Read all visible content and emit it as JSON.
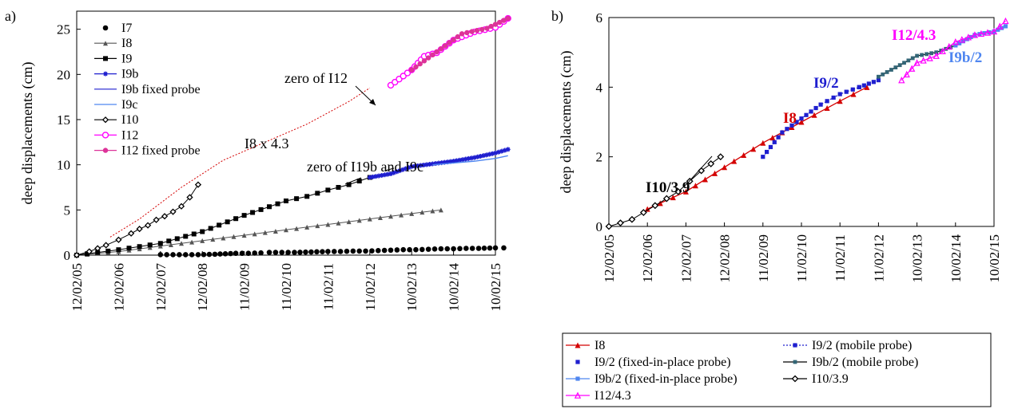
{
  "colors": {
    "red": "#d40000",
    "blue_dark": "#1f1fcf",
    "blue_light": "#4f86f0",
    "magenta": "#ff00ff",
    "pink": "#dd3399",
    "black": "#000000",
    "gray": "#555555",
    "teal": "#336677"
  },
  "chart_data": [
    {
      "panel_label": "a)",
      "type": "line",
      "ylabel": "deep displacements (cm)",
      "xlabel": "",
      "ylim": [
        0,
        27
      ],
      "yticks": [
        "0",
        "5",
        "10",
        "15",
        "20",
        "25"
      ],
      "xticks": [
        "12/02/05",
        "12/02/06",
        "12/02/07",
        "12/02/08",
        "11/02/09",
        "11/02/10",
        "11/02/11",
        "11/02/12",
        "10/02/13",
        "10/02/14",
        "10/02/15"
      ],
      "legend_position": "top-left",
      "annotations": [
        "zero of I12",
        "I8 x 4.3",
        "zero of I19b and I9c"
      ],
      "series": [
        {
          "name": "I7",
          "x": [
            2.0,
            2.3,
            2.6,
            2.9,
            3.3,
            3.8,
            4.1,
            4.4,
            4.6,
            4.9,
            5.2,
            5.6,
            6.0,
            6.3,
            6.6,
            6.9,
            7.2,
            7.5,
            7.8,
            8.1,
            8.4,
            8.7,
            9.0,
            9.3,
            9.6,
            10.0,
            10.2
          ],
          "y": [
            0.05,
            0.05,
            0.05,
            0.05,
            0.1,
            0.2,
            0.2,
            0.25,
            0.3,
            0.3,
            0.3,
            0.35,
            0.4,
            0.4,
            0.45,
            0.45,
            0.5,
            0.55,
            0.6,
            0.6,
            0.65,
            0.7,
            0.7,
            0.75,
            0.75,
            0.8,
            0.8
          ]
        },
        {
          "name": "I8",
          "x": [
            0,
            0.5,
            1.0,
            1.5,
            2.0,
            2.5,
            3.0,
            3.5,
            4.0,
            4.5,
            5.0,
            5.5,
            6.0,
            6.5,
            7.0,
            7.5,
            8.0,
            8.5,
            8.7
          ],
          "y": [
            0,
            0.2,
            0.4,
            0.7,
            1.0,
            1.3,
            1.6,
            1.9,
            2.2,
            2.5,
            2.8,
            3.1,
            3.4,
            3.7,
            4.0,
            4.3,
            4.6,
            4.9,
            5.0
          ]
        },
        {
          "name": "I9",
          "x": [
            0,
            1.0,
            2.0,
            3.0,
            4.0,
            5.0,
            5.5,
            6.0,
            6.5,
            7.0
          ],
          "y": [
            0,
            0.6,
            1.3,
            2.6,
            4.4,
            6.0,
            6.5,
            7.2,
            7.8,
            8.6
          ]
        },
        {
          "name": "I9b",
          "x": [
            7.0,
            7.5,
            8.0,
            8.5,
            9.0,
            9.5,
            10.0,
            10.3
          ],
          "y": [
            8.6,
            9.0,
            9.8,
            10.1,
            10.4,
            10.8,
            11.3,
            11.7
          ]
        },
        {
          "name": "I9b fixed probe",
          "x": [
            7.5,
            8.0
          ],
          "y": [
            9.0,
            9.8
          ]
        },
        {
          "name": "I9c",
          "x": [
            8.5,
            9.0,
            9.5,
            10.0,
            10.3
          ],
          "y": [
            10.0,
            10.2,
            10.4,
            10.7,
            11.0
          ]
        },
        {
          "name": "I10",
          "x": [
            0,
            0.3,
            0.7,
            1.0,
            1.3,
            1.5,
            1.7,
            1.9,
            2.1,
            2.3,
            2.5,
            2.7,
            2.9
          ],
          "y": [
            0,
            0.4,
            1.1,
            1.7,
            2.4,
            2.9,
            3.3,
            3.9,
            4.3,
            4.8,
            5.4,
            6.4,
            7.8
          ]
        },
        {
          "name": "I12",
          "x": [
            7.5,
            8.0,
            8.3,
            8.6,
            9.0,
            9.5,
            10.0,
            10.3
          ],
          "y": [
            18.8,
            20.5,
            22.0,
            22.4,
            23.8,
            24.7,
            25.2,
            26.2
          ]
        },
        {
          "name": "I12 fixed probe",
          "x": [
            8.0,
            8.6,
            9.2,
            9.8,
            10.3
          ],
          "y": [
            20.5,
            22.5,
            24.5,
            25.1,
            26.2
          ]
        },
        {
          "name": "I8 x 4.3",
          "x": [
            0.8,
            1.5,
            2.5,
            3.5,
            4.5,
            5.5,
            6.5,
            7.0
          ],
          "y": [
            2.0,
            4.0,
            7.5,
            10.5,
            12.5,
            14.5,
            17.0,
            18.5
          ]
        }
      ]
    },
    {
      "panel_label": "b)",
      "type": "line",
      "ylabel": "deep displacements (cm)",
      "xlabel": "",
      "ylim": [
        0,
        6
      ],
      "yticks": [
        "0",
        "2",
        "4",
        "6"
      ],
      "xticks": [
        "12/02/05",
        "12/02/06",
        "12/02/07",
        "12/02/08",
        "11/02/09",
        "11/02/10",
        "11/02/11",
        "11/02/12",
        "10/02/13",
        "10/02/14",
        "10/02/15"
      ],
      "legend_position": "bottom",
      "annotations": [
        "I10/3.9",
        "I8",
        "I9/2",
        "I12/4.3",
        "I9b/2"
      ],
      "series": [
        {
          "name": "I8",
          "x": [
            1.0,
            2.0,
            3.0,
            4.0,
            4.5,
            5.0,
            6.0,
            6.7
          ],
          "y": [
            0.5,
            1.0,
            1.7,
            2.4,
            2.7,
            3.0,
            3.6,
            4.0
          ]
        },
        {
          "name": "I9/2 (mobile probe)",
          "x": [
            4.0,
            4.5,
            5.0,
            5.5,
            6.0,
            6.5
          ],
          "y": [
            2.0,
            2.7,
            3.1,
            3.5,
            3.8,
            4.0
          ]
        },
        {
          "name": "I9/2 (fixed-in-place probe)",
          "x": [
            6.5,
            7.0
          ],
          "y": [
            4.0,
            4.2
          ]
        },
        {
          "name": "I9b/2 (mobile probe)",
          "x": [
            7.0,
            8.0,
            8.5,
            9.0
          ],
          "y": [
            4.3,
            4.9,
            5.0,
            5.2
          ]
        },
        {
          "name": "I9b/2 (fixed-in-place probe)",
          "x": [
            9.0,
            9.5,
            10.0,
            10.3
          ],
          "y": [
            5.2,
            5.5,
            5.6,
            5.75
          ]
        },
        {
          "name": "I10/3.9",
          "x": [
            0,
            0.6,
            1.2,
            1.8,
            2.4,
            2.9
          ],
          "y": [
            0,
            0.2,
            0.6,
            1.0,
            1.6,
            2.0
          ]
        },
        {
          "name": "I12/4.3",
          "x": [
            7.6,
            8.0,
            8.5,
            9.0,
            9.5,
            10.0,
            10.3
          ],
          "y": [
            4.2,
            4.7,
            4.9,
            5.3,
            5.5,
            5.6,
            5.9
          ]
        }
      ]
    }
  ]
}
